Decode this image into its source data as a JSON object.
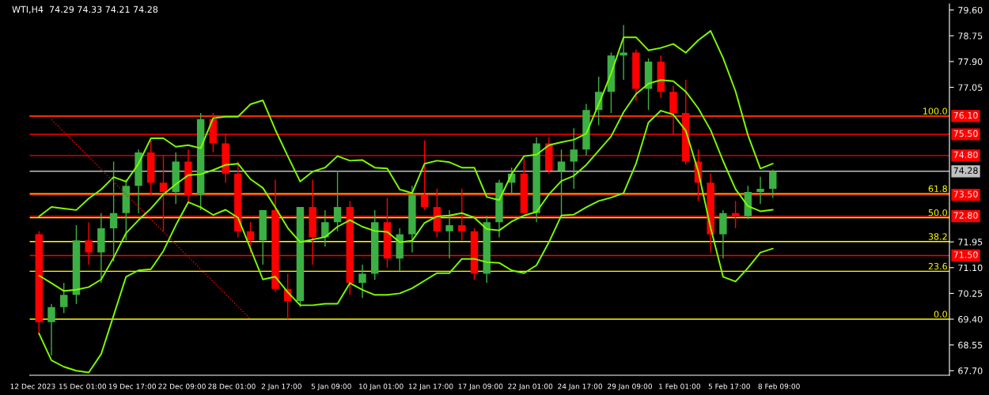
{
  "chart_data": {
    "type": "candlestick",
    "title": "WTI,H4  74.29 74.33 74.21 74.28",
    "categories": [
      "12 Dec 2023",
      null,
      null,
      null,
      "15 Dec 01:00",
      null,
      null,
      null,
      "19 Dec 17:00",
      null,
      null,
      null,
      "22 Dec 09:00",
      null,
      null,
      null,
      "28 Dec 01:00",
      null,
      null,
      null,
      "2 Jan 17:00",
      null,
      null,
      null,
      "5 Jan 09:00",
      null,
      null,
      null,
      "10 Jan 01:00",
      null,
      null,
      null,
      "12 Jan 17:00",
      null,
      null,
      null,
      "17 Jan 09:00",
      null,
      null,
      null,
      "22 Jan 01:00",
      null,
      null,
      null,
      "24 Jan 17:00",
      null,
      null,
      null,
      "29 Jan 09:00",
      null,
      null,
      null,
      "1 Feb 01:00",
      null,
      null,
      null,
      "5 Feb 17:00",
      null,
      null,
      null,
      "8 Feb 09:00"
    ],
    "ohlc": [
      [
        72.2,
        72.3,
        68.9,
        69.3
      ],
      [
        69.3,
        69.9,
        68.2,
        69.8
      ],
      [
        69.8,
        70.6,
        69.6,
        70.2
      ],
      [
        70.2,
        72.5,
        69.9,
        72.0
      ],
      [
        72.0,
        72.6,
        71.2,
        71.6
      ],
      [
        71.6,
        72.9,
        70.6,
        72.4
      ],
      [
        72.4,
        74.6,
        71.3,
        72.9
      ],
      [
        72.9,
        74.0,
        72.0,
        73.8
      ],
      [
        73.8,
        75.0,
        72.9,
        74.9
      ],
      [
        74.9,
        75.3,
        73.5,
        73.9
      ],
      [
        73.9,
        74.8,
        72.3,
        73.6
      ],
      [
        73.6,
        74.9,
        73.2,
        74.6
      ],
      [
        74.6,
        75.0,
        73.2,
        73.5
      ],
      [
        73.5,
        76.2,
        73.0,
        76.0
      ],
      [
        76.0,
        76.2,
        74.9,
        75.2
      ],
      [
        75.2,
        75.5,
        73.9,
        74.2
      ],
      [
        74.2,
        74.6,
        72.1,
        72.3
      ],
      [
        72.3,
        72.6,
        71.6,
        72.0
      ],
      [
        72.0,
        73.0,
        71.2,
        73.0
      ],
      [
        73.0,
        74.0,
        70.3,
        70.4
      ],
      [
        70.4,
        70.9,
        69.4,
        70.0
      ],
      [
        70.0,
        73.1,
        69.8,
        73.1
      ],
      [
        73.1,
        74.0,
        71.2,
        72.1
      ],
      [
        72.1,
        73.0,
        71.8,
        72.6
      ],
      [
        72.6,
        74.3,
        72.3,
        73.1
      ],
      [
        73.1,
        73.3,
        70.2,
        70.6
      ],
      [
        70.6,
        71.2,
        70.1,
        70.9
      ],
      [
        70.9,
        73.0,
        70.7,
        72.6
      ],
      [
        72.6,
        73.4,
        71.1,
        71.4
      ],
      [
        71.4,
        72.4,
        71.0,
        72.2
      ],
      [
        72.2,
        73.8,
        71.6,
        73.5
      ],
      [
        73.5,
        75.3,
        73.0,
        73.1
      ],
      [
        73.1,
        73.7,
        72.1,
        72.3
      ],
      [
        72.3,
        73.0,
        71.4,
        72.5
      ],
      [
        72.5,
        73.7,
        72.0,
        72.3
      ],
      [
        72.3,
        72.4,
        70.7,
        70.9
      ],
      [
        70.9,
        72.8,
        70.6,
        72.6
      ],
      [
        72.6,
        74.0,
        72.1,
        73.9
      ],
      [
        73.9,
        74.4,
        73.5,
        74.2
      ],
      [
        74.2,
        74.7,
        72.9,
        72.9
      ],
      [
        72.9,
        75.4,
        72.6,
        75.2
      ],
      [
        75.2,
        75.4,
        74.2,
        74.3
      ],
      [
        74.3,
        75.0,
        72.8,
        74.6
      ],
      [
        74.6,
        75.7,
        73.7,
        75.0
      ],
      [
        75.0,
        76.5,
        74.8,
        76.3
      ],
      [
        76.3,
        77.4,
        75.8,
        76.9
      ],
      [
        76.9,
        78.2,
        76.2,
        78.1
      ],
      [
        78.1,
        79.1,
        77.3,
        78.2
      ],
      [
        78.2,
        78.3,
        76.6,
        77.0
      ],
      [
        77.0,
        78.0,
        76.3,
        77.9
      ],
      [
        77.9,
        78.1,
        76.7,
        76.9
      ],
      [
        76.9,
        77.1,
        75.5,
        76.2
      ],
      [
        76.2,
        77.3,
        74.5,
        74.6
      ],
      [
        74.6,
        75.0,
        73.3,
        73.9
      ],
      [
        73.9,
        74.2,
        71.6,
        72.2
      ],
      [
        72.2,
        73.0,
        71.4,
        72.9
      ],
      [
        72.9,
        73.3,
        72.4,
        72.8
      ],
      [
        72.8,
        73.8,
        72.7,
        73.6
      ],
      [
        73.6,
        74.1,
        73.2,
        73.7
      ],
      [
        73.7,
        74.33,
        73.4,
        74.28
      ],
      null
    ],
    "colors": [
      "#ff0000",
      "#3cb043",
      "#3cb043",
      "#3cb043",
      "#ff0000",
      "#3cb043",
      "#3cb043",
      "#3cb043",
      "#3cb043",
      "#ff0000",
      "#ff0000",
      "#3cb043",
      "#ff0000",
      "#3cb043",
      "#ff0000",
      "#ff0000",
      "#ff0000",
      "#ff0000",
      "#3cb043",
      "#ff0000",
      "#ff0000",
      "#3cb043",
      "#ff0000",
      "#3cb043",
      "#3cb043",
      "#ff0000",
      "#3cb043",
      "#3cb043",
      "#ff0000",
      "#3cb043",
      "#3cb043",
      "#ff0000",
      "#ff0000",
      "#3cb043",
      "#ff0000",
      "#ff0000",
      "#3cb043",
      "#3cb043",
      "#3cb043",
      "#ff0000",
      "#3cb043",
      "#ff0000",
      "#3cb043",
      "#3cb043",
      "#3cb043",
      "#3cb043",
      "#3cb043",
      "#3cb043",
      "#ff0000",
      "#3cb043",
      "#ff0000",
      "#ff0000",
      "#ff0000",
      "#ff0000",
      "#ff0000",
      "#3cb043",
      "#ff0000",
      "#3cb043",
      "#3cb043",
      "#3cb043",
      null
    ],
    "series": [
      {
        "type": "line",
        "color": "#7cfc00",
        "values": [
          72.79,
          73.1,
          73.05,
          73.0,
          73.38,
          73.68,
          74.09,
          73.94,
          74.53,
          75.37,
          75.37,
          75.09,
          75.14,
          75.04,
          76.03,
          76.08,
          76.08,
          76.49,
          76.62,
          75.65,
          74.78,
          73.94,
          74.27,
          74.4,
          74.78,
          74.63,
          74.65,
          74.4,
          74.37,
          73.68,
          73.56,
          74.53,
          74.63,
          74.58,
          74.4,
          74.4,
          73.43,
          73.33,
          74.19,
          74.78,
          74.83,
          75.14,
          75.24,
          75.32,
          75.52,
          76.49,
          77.51,
          78.7,
          78.7,
          78.27,
          78.35,
          78.48,
          78.19,
          78.6,
          78.91,
          78.02,
          76.92,
          75.47,
          74.37,
          74.53,
          null
        ]
      },
      {
        "type": "line",
        "color": "#7cfc00",
        "values": [
          70.84,
          70.59,
          70.33,
          70.37,
          70.46,
          70.71,
          71.43,
          72.24,
          72.67,
          73.05,
          73.52,
          73.85,
          74.15,
          74.18,
          74.32,
          74.49,
          74.53,
          74.02,
          73.73,
          73.09,
          72.41,
          71.94,
          72.03,
          72.11,
          72.45,
          72.67,
          72.45,
          72.31,
          72.28,
          71.94,
          71.99,
          72.58,
          72.79,
          72.82,
          72.9,
          72.75,
          72.37,
          72.33,
          72.62,
          72.82,
          72.94,
          73.52,
          73.96,
          74.13,
          74.49,
          74.96,
          75.43,
          76.23,
          76.83,
          77.17,
          77.29,
          77.25,
          76.91,
          76.36,
          75.64,
          74.62,
          73.69,
          73.13,
          72.96,
          73.01,
          null
        ]
      },
      {
        "type": "line",
        "color": "#7cfc00",
        "values": [
          68.93,
          68.04,
          67.83,
          67.7,
          67.64,
          68.25,
          69.52,
          70.8,
          71.01,
          71.05,
          71.65,
          72.5,
          73.26,
          73.09,
          72.84,
          73.01,
          72.75,
          71.73,
          70.71,
          70.8,
          70.29,
          69.86,
          69.86,
          69.91,
          69.91,
          70.59,
          70.37,
          70.2,
          70.2,
          70.25,
          70.42,
          70.67,
          70.92,
          70.92,
          71.39,
          71.39,
          71.28,
          71.26,
          71.01,
          70.92,
          71.18,
          71.94,
          72.82,
          72.85,
          73.09,
          73.3,
          73.41,
          73.56,
          74.53,
          75.89,
          76.28,
          76.15,
          75.62,
          74.28,
          72.41,
          70.8,
          70.64,
          71.09,
          71.6,
          71.73,
          null
        ]
      },
      {
        "type": "line",
        "color": "#ff0000",
        "line_style": "dotted",
        "values": [
          null,
          75.99,
          null,
          null,
          null,
          null,
          null,
          null,
          null,
          null,
          null,
          null,
          null,
          null,
          null,
          null,
          null,
          69.4,
          null,
          null,
          null,
          null,
          null,
          null,
          null,
          null,
          null,
          null,
          null,
          null,
          null,
          null,
          null,
          null,
          null,
          null,
          null,
          null,
          null,
          null,
          null,
          null,
          null,
          null,
          null,
          null,
          null,
          null,
          null,
          null,
          null,
          null,
          null,
          null,
          null,
          null,
          null,
          null,
          null,
          null,
          null
        ]
      }
    ],
    "ref_lines": [
      {
        "axis": "y",
        "value": 76.1,
        "color": "#ffff00"
      },
      {
        "axis": "y",
        "value": 73.54,
        "color": "#ffff00"
      },
      {
        "axis": "y",
        "value": 72.75,
        "color": "#ffff00"
      },
      {
        "axis": "y",
        "value": 71.96,
        "color": "#ffff00"
      },
      {
        "axis": "y",
        "value": 70.98,
        "color": "#ffff00"
      },
      {
        "axis": "y",
        "value": 69.4,
        "color": "#ffff00"
      },
      {
        "axis": "y",
        "value": 76.1,
        "label": "76.10",
        "color": "#ff0000"
      },
      {
        "axis": "y",
        "value": 75.5,
        "label": "75.50",
        "color": "#ff0000"
      },
      {
        "axis": "y",
        "value": 74.8,
        "label": "74.80",
        "color": "#ff0000"
      },
      {
        "axis": "y",
        "value": 74.28,
        "label": "74.28",
        "color": "#c0c0c0"
      },
      {
        "axis": "y",
        "value": 73.5,
        "label": "73.50",
        "color": "#ff0000"
      },
      {
        "axis": "y",
        "value": 72.8,
        "label": "72.80",
        "color": "#ff0000"
      },
      {
        "axis": "y",
        "value": 71.5,
        "label": "71.50",
        "color": "#ff0000"
      }
    ],
    "annotations": [
      {
        "text": "100.0",
        "y": 76.1
      },
      {
        "text": "61.8",
        "y": 73.54
      },
      {
        "text": "50.0",
        "y": 72.75
      },
      {
        "text": "38.2",
        "y": 71.96
      },
      {
        "text": "23.6",
        "y": 70.98
      },
      {
        "text": "0.0",
        "y": 69.4
      }
    ],
    "ylim": [
      67.55,
      79.8
    ],
    "yticks": [
      {
        "value": 79.6,
        "label": "79.60"
      },
      {
        "value": 78.75,
        "label": "78.75"
      },
      {
        "value": 77.9,
        "label": "77.90"
      },
      {
        "value": 77.05,
        "label": "77.05"
      },
      {
        "value": 71.95,
        "label": "71.95"
      },
      {
        "value": 71.1,
        "label": "71.10"
      },
      {
        "value": 70.25,
        "label": "70.25"
      },
      {
        "value": 69.4,
        "label": "69.40"
      },
      {
        "value": 68.55,
        "label": "68.55"
      },
      {
        "value": 67.7,
        "label": "67.70"
      }
    ]
  }
}
